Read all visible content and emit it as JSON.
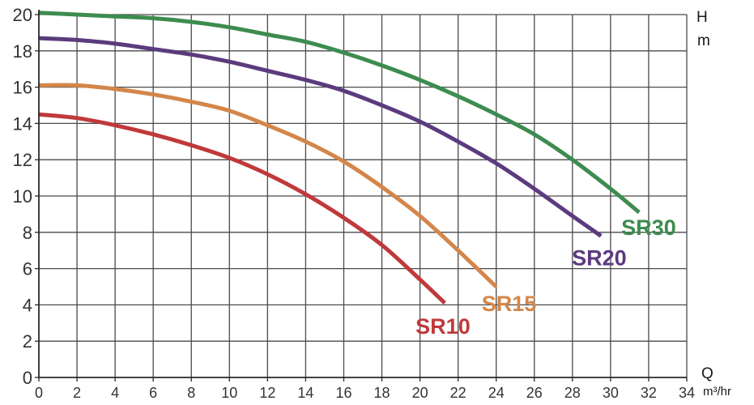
{
  "chart_data": {
    "type": "line",
    "xlabel": "Q",
    "xunit": "m³/hr",
    "ylabel": "H",
    "yunit": "m",
    "xlim": [
      0,
      34
    ],
    "ylim": [
      0,
      20
    ],
    "xticks": [
      0,
      2,
      4,
      6,
      8,
      10,
      12,
      14,
      16,
      18,
      20,
      22,
      24,
      26,
      28,
      30,
      32,
      34
    ],
    "yticks": [
      0,
      2,
      4,
      6,
      8,
      10,
      12,
      14,
      16,
      18,
      20
    ],
    "grid": true,
    "series": [
      {
        "name": "SR10",
        "color": "#c0393b",
        "x": [
          0,
          2,
          4,
          6,
          8,
          10,
          12,
          14,
          16,
          18,
          20,
          21.3
        ],
        "y": [
          14.5,
          14.3,
          13.9,
          13.4,
          12.8,
          12.1,
          11.2,
          10.1,
          8.8,
          7.3,
          5.4,
          4.1
        ]
      },
      {
        "name": "SR15",
        "color": "#d4864a",
        "x": [
          0,
          2,
          4,
          6,
          8,
          10,
          12,
          14,
          16,
          18,
          20,
          22,
          24
        ],
        "y": [
          16.1,
          16.1,
          15.9,
          15.6,
          15.2,
          14.7,
          13.9,
          13,
          11.9,
          10.5,
          8.9,
          7,
          5
        ]
      },
      {
        "name": "SR20",
        "color": "#5b3b7e",
        "x": [
          0,
          2,
          4,
          6,
          8,
          10,
          12,
          14,
          16,
          18,
          20,
          22,
          24,
          26,
          28,
          29.5
        ],
        "y": [
          18.7,
          18.6,
          18.4,
          18.1,
          17.8,
          17.4,
          16.9,
          16.4,
          15.8,
          15,
          14.1,
          13,
          11.8,
          10.4,
          8.9,
          7.8
        ]
      },
      {
        "name": "SR30",
        "color": "#3d8c4f",
        "x": [
          0,
          2,
          4,
          6,
          8,
          10,
          12,
          14,
          16,
          18,
          20,
          22,
          24,
          26,
          28,
          30,
          31.5
        ],
        "y": [
          20.1,
          20,
          19.9,
          19.8,
          19.6,
          19.3,
          18.9,
          18.5,
          17.9,
          17.2,
          16.4,
          15.5,
          14.5,
          13.4,
          12,
          10.4,
          9.1
        ]
      }
    ]
  }
}
